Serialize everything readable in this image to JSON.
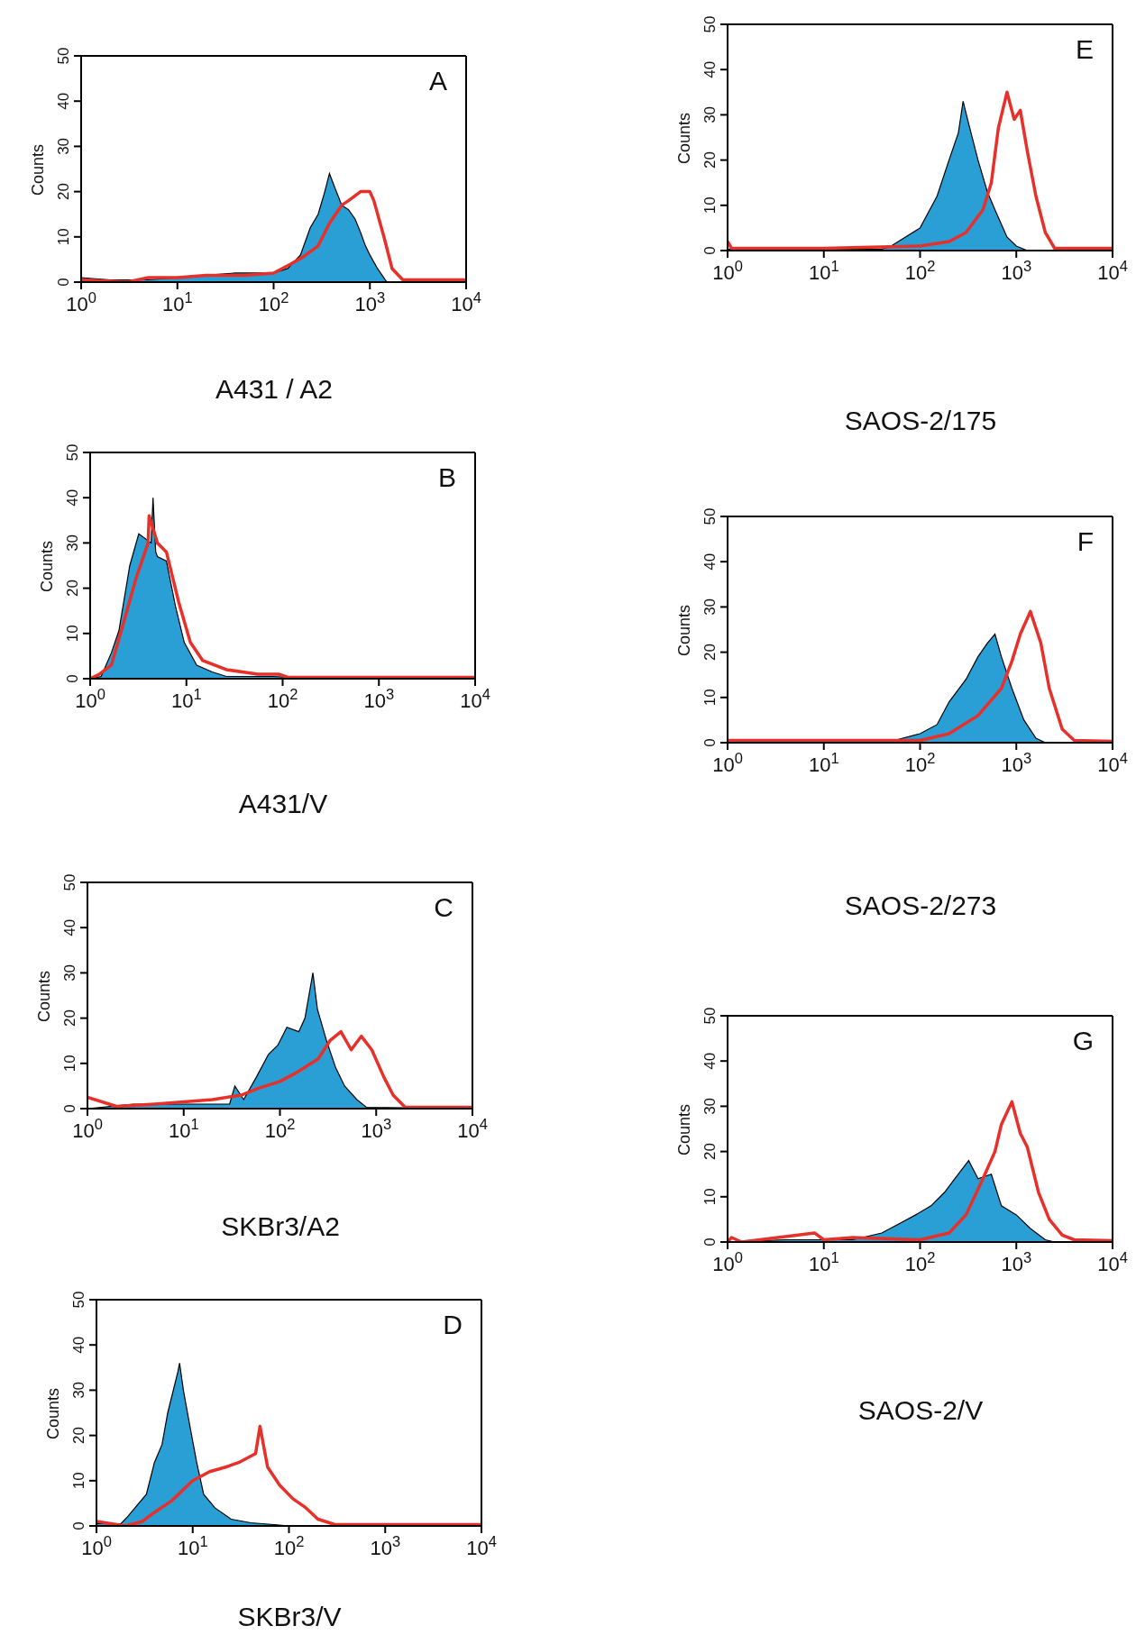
{
  "chart_data": [
    {
      "type": "area",
      "xlabel": "A431 / A2",
      "ylabel": "Counts",
      "annotations": [
        "A"
      ],
      "log": "x",
      "xlim": [
        1,
        10000
      ],
      "ylim": [
        0,
        50
      ],
      "xticks": [
        {
          "value": 1,
          "label": "10$^{0}$"
        },
        {
          "value": 10,
          "label": "10$^{1}$"
        },
        {
          "value": 100,
          "label": "10$^{2}$"
        },
        {
          "value": 1000,
          "label": "10$^{3}$"
        },
        {
          "value": 10000,
          "label": "10$^{4}$"
        }
      ],
      "yticks": [
        0,
        10,
        20,
        30,
        40,
        50
      ],
      "series": [
        {
          "type": "area",
          "color": "#2a9fd6",
          "x": [
            1,
            2,
            5,
            10,
            20,
            40,
            80,
            100,
            140,
            190,
            240,
            290,
            340,
            380,
            430,
            510,
            600,
            700,
            800,
            900,
            1000,
            1200,
            1500,
            2000,
            10000
          ],
          "values": [
            1,
            0.5,
            0.5,
            1,
            1.5,
            2,
            2,
            2,
            3,
            6,
            12,
            15,
            20,
            24,
            21,
            17,
            16,
            14,
            11,
            8,
            6,
            3,
            0,
            0,
            0
          ]
        },
        {
          "type": "line",
          "color": "#e8302a",
          "x": [
            1,
            3,
            5,
            10,
            20,
            50,
            100,
            150,
            200,
            290,
            380,
            510,
            600,
            800,
            1000,
            1100,
            1400,
            1700,
            2200,
            10000
          ],
          "values": [
            0.5,
            0,
            1,
            1,
            1.5,
            1.5,
            2,
            4,
            5.5,
            8,
            13,
            17,
            18,
            20,
            20,
            18,
            10,
            3,
            0.5,
            0.5
          ]
        }
      ]
    },
    {
      "type": "area",
      "xlabel": "A431/V",
      "ylabel": "Counts",
      "annotations": [
        "B"
      ],
      "log": "x",
      "xlim": [
        1,
        10000
      ],
      "ylim": [
        0,
        50
      ],
      "xticks": [
        {
          "value": 1,
          "label": "10$^{0}$"
        },
        {
          "value": 10,
          "label": "10$^{1}$"
        },
        {
          "value": 100,
          "label": "10$^{2}$"
        },
        {
          "value": 1000,
          "label": "10$^{3}$"
        },
        {
          "value": 10000,
          "label": "10$^{4}$"
        }
      ],
      "yticks": [
        0,
        10,
        20,
        30,
        40,
        50
      ],
      "series": [
        {
          "type": "area",
          "color": "#2a9fd6",
          "x": [
            1,
            1.3,
            1.66,
            1.99,
            2.58,
            3.2,
            4.3,
            4.5,
            4.8,
            5,
            6.2,
            7.7,
            9.5,
            12.8,
            18.5,
            26,
            80,
            237,
            10000
          ],
          "values": [
            0,
            0.5,
            5.7,
            10.6,
            25,
            32,
            30,
            40,
            28,
            27,
            26,
            16,
            8,
            3,
            1.5,
            0.5,
            0.5,
            0,
            0
          ]
        },
        {
          "type": "line",
          "color": "#e8302a",
          "x": [
            1,
            1.25,
            1.66,
            2.2,
            2.98,
            4,
            4.1,
            5,
            6.2,
            8.3,
            11,
            14.8,
            26,
            55,
            91,
            113,
            10000
          ],
          "values": [
            0,
            1,
            3,
            12,
            22,
            30,
            36,
            30,
            28,
            17,
            8,
            4,
            2,
            1,
            1,
            0.3,
            0.3
          ]
        }
      ]
    },
    {
      "type": "area",
      "xlabel": "SKBr3/A2",
      "ylabel": "Counts",
      "annotations": [
        "C"
      ],
      "log": "x",
      "xlim": [
        1,
        10000
      ],
      "ylim": [
        0,
        50
      ],
      "xticks": [
        {
          "value": 1,
          "label": "10$^{0}$"
        },
        {
          "value": 10,
          "label": "10$^{1}$"
        },
        {
          "value": 100,
          "label": "10$^{2}$"
        },
        {
          "value": 1000,
          "label": "10$^{3}$"
        },
        {
          "value": 10000,
          "label": "10$^{4}$"
        }
      ],
      "yticks": [
        0,
        10,
        20,
        30,
        40,
        50
      ],
      "series": [
        {
          "type": "area",
          "color": "#2a9fd6",
          "x": [
            1,
            3,
            10,
            30,
            34,
            42,
            57,
            76,
            95,
            118,
            157,
            182,
            220,
            245,
            305,
            380,
            470,
            630,
            790,
            10000
          ],
          "values": [
            0,
            1,
            1,
            1,
            5,
            2,
            7,
            12,
            14,
            18,
            17,
            20,
            30,
            22,
            15,
            9,
            5,
            2,
            0.3,
            0
          ]
        },
        {
          "type": "line",
          "color": "#e8302a",
          "x": [
            1,
            2,
            5,
            10,
            20,
            40,
            60,
            100,
            150,
            250,
            330,
            430,
            550,
            700,
            900,
            1200,
            1500,
            2000,
            10000
          ],
          "values": [
            2.5,
            0.5,
            1,
            1.5,
            2,
            3,
            4.5,
            6,
            8,
            11,
            15,
            17,
            13,
            16,
            13,
            7,
            3,
            0.3,
            0.3
          ]
        }
      ]
    },
    {
      "type": "area",
      "xlabel": "SKBr3/V",
      "ylabel": "Counts",
      "annotations": [
        "D"
      ],
      "log": "x",
      "xlim": [
        1,
        10000
      ],
      "ylim": [
        0,
        50
      ],
      "xticks": [
        {
          "value": 1,
          "label": "10$^{0}$"
        },
        {
          "value": 10,
          "label": "10$^{1}$"
        },
        {
          "value": 100,
          "label": "10$^{2}$"
        },
        {
          "value": 1000,
          "label": "10$^{3}$"
        },
        {
          "value": 10000,
          "label": "10$^{4}$"
        }
      ],
      "yticks": [
        0,
        10,
        20,
        30,
        40,
        50
      ],
      "series": [
        {
          "type": "area",
          "color": "#2a9fd6",
          "x": [
            1,
            1.8,
            2.1,
            3.3,
            4,
            4.8,
            5.5,
            7,
            7.3,
            8,
            9,
            11,
            13,
            17,
            25,
            40,
            70,
            100,
            10000
          ],
          "values": [
            0.5,
            0.5,
            2,
            7,
            14,
            18,
            25,
            34,
            36,
            30,
            24,
            14,
            7,
            4,
            1.5,
            0.7,
            0.3,
            0,
            0
          ]
        },
        {
          "type": "line",
          "color": "#e8302a",
          "x": [
            1,
            2,
            3,
            4,
            6,
            10,
            15,
            22,
            30,
            45,
            50,
            60,
            80,
            110,
            150,
            200,
            300,
            10000
          ],
          "values": [
            1,
            0,
            1,
            3,
            5.5,
            10,
            12,
            13,
            14,
            16,
            22,
            13,
            9,
            6,
            4,
            1.5,
            0.3,
            0.3
          ]
        }
      ]
    },
    {
      "type": "area",
      "xlabel": "SAOS-2/175",
      "ylabel": "Counts",
      "annotations": [
        "E"
      ],
      "log": "x",
      "xlim": [
        1,
        10000
      ],
      "ylim": [
        0,
        50
      ],
      "xticks": [
        {
          "value": 1,
          "label": "10$^{0}$"
        },
        {
          "value": 10,
          "label": "10$^{1}$"
        },
        {
          "value": 100,
          "label": "10$^{2}$"
        },
        {
          "value": 1000,
          "label": "10$^{3}$"
        },
        {
          "value": 10000,
          "label": "10$^{4}$"
        }
      ],
      "yticks": [
        0,
        10,
        20,
        30,
        40,
        50
      ],
      "series": [
        {
          "type": "area",
          "color": "#2a9fd6",
          "x": [
            1,
            10,
            40,
            50,
            100,
            150,
            200,
            250,
            280,
            320,
            400,
            500,
            600,
            800,
            1000,
            1300,
            10000
          ],
          "values": [
            0.3,
            0.3,
            0.3,
            1,
            5,
            12,
            20,
            26,
            33,
            28,
            20,
            13,
            9,
            3,
            1,
            0,
            0
          ]
        },
        {
          "type": "line",
          "color": "#e8302a",
          "x": [
            1,
            1.1,
            10,
            100,
            200,
            300,
            450,
            550,
            650,
            800,
            950,
            1100,
            1300,
            1600,
            2000,
            2500,
            10000
          ],
          "values": [
            2,
            0.5,
            0.5,
            1,
            2,
            4,
            9,
            15,
            27,
            35,
            29,
            31,
            22,
            12,
            4,
            0.5,
            0.5
          ]
        }
      ]
    },
    {
      "type": "area",
      "xlabel": "SAOS-2/273",
      "ylabel": "Counts",
      "annotations": [
        "F"
      ],
      "log": "x",
      "xlim": [
        1,
        10000
      ],
      "ylim": [
        0,
        50
      ],
      "xticks": [
        {
          "value": 1,
          "label": "10$^{0}$"
        },
        {
          "value": 10,
          "label": "10$^{1}$"
        },
        {
          "value": 100,
          "label": "10$^{2}$"
        },
        {
          "value": 1000,
          "label": "10$^{3}$"
        },
        {
          "value": 10000,
          "label": "10$^{4}$"
        }
      ],
      "yticks": [
        0,
        10,
        20,
        30,
        40,
        50
      ],
      "series": [
        {
          "type": "area",
          "color": "#2a9fd6",
          "x": [
            1,
            50,
            100,
            150,
            200,
            300,
            400,
            500,
            600,
            700,
            900,
            1200,
            1600,
            2000,
            10000
          ],
          "values": [
            0.3,
            0.3,
            2,
            4,
            9,
            14,
            19,
            22,
            24,
            19,
            12,
            5,
            1,
            0,
            0
          ]
        },
        {
          "type": "line",
          "color": "#e8302a",
          "x": [
            1,
            100,
            200,
            400,
            700,
            900,
            1100,
            1400,
            1800,
            2200,
            3000,
            4000,
            10000
          ],
          "values": [
            0.5,
            0.5,
            2,
            6,
            12,
            18,
            24,
            29,
            22,
            12,
            3,
            0.5,
            0.3
          ]
        }
      ]
    },
    {
      "type": "area",
      "xlabel": "SAOS-2/V",
      "ylabel": "Counts",
      "annotations": [
        "G"
      ],
      "log": "x",
      "xlim": [
        1,
        10000
      ],
      "ylim": [
        0,
        50
      ],
      "xticks": [
        {
          "value": 1,
          "label": "10$^{0}$"
        },
        {
          "value": 10,
          "label": "10$^{1}$"
        },
        {
          "value": 100,
          "label": "10$^{2}$"
        },
        {
          "value": 1000,
          "label": "10$^{3}$"
        },
        {
          "value": 10000,
          "label": "10$^{4}$"
        }
      ],
      "yticks": [
        0,
        10,
        20,
        30,
        40,
        50
      ],
      "series": [
        {
          "type": "area",
          "color": "#2a9fd6",
          "x": [
            1,
            4,
            20,
            40,
            60,
            90,
            130,
            180,
            230,
            320,
            400,
            550,
            700,
            1000,
            1400,
            2000,
            2500,
            10000
          ],
          "values": [
            0,
            0.5,
            0.5,
            2,
            4,
            6,
            8,
            11,
            14,
            18,
            14,
            15,
            8,
            6,
            3,
            0.5,
            0,
            0
          ]
        },
        {
          "type": "line",
          "color": "#e8302a",
          "x": [
            1,
            1.1,
            1.4,
            8,
            10,
            20,
            100,
            200,
            300,
            450,
            600,
            700,
            900,
            1100,
            1300,
            1700,
            2200,
            3000,
            4000,
            10000
          ],
          "values": [
            0,
            1,
            0,
            2,
            0.5,
            1,
            0.5,
            2,
            6,
            14,
            20,
            26,
            31,
            24,
            21,
            11,
            5,
            1.5,
            0.5,
            0.3
          ]
        }
      ]
    }
  ]
}
